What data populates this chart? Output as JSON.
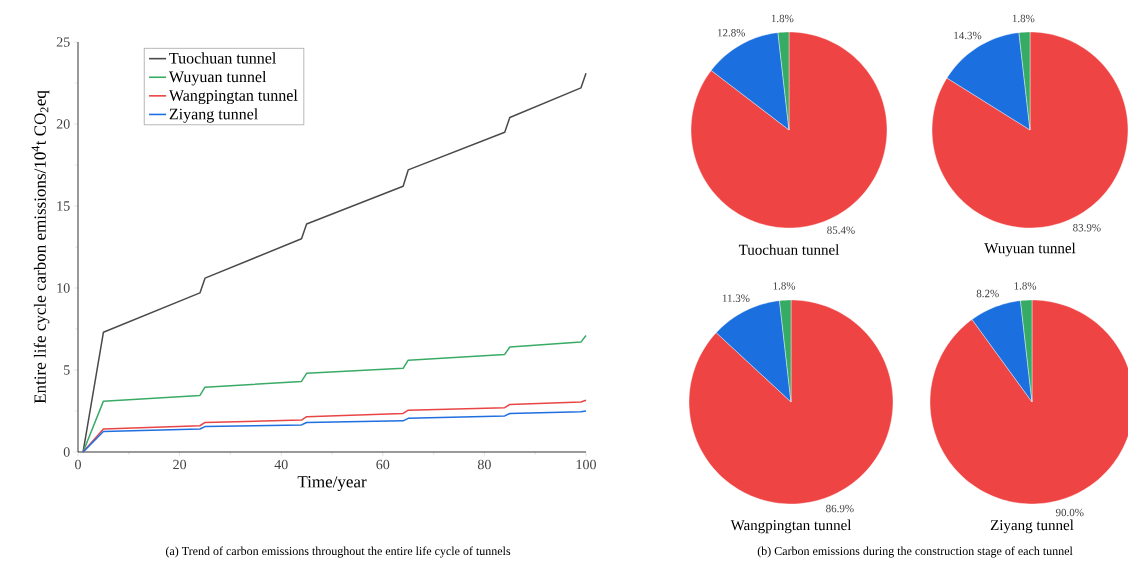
{
  "chart_data": [
    {
      "type": "line",
      "xlabel": "Time/year",
      "ylabel": "Entire life cycle carbon emissions/10$^{4}$t CO$_{2}$eq",
      "xlim": [
        0,
        100
      ],
      "ylim": [
        0,
        25
      ],
      "xticks": [
        0,
        20,
        40,
        60,
        80,
        100
      ],
      "yticks": [
        0,
        5,
        10,
        15,
        20,
        25
      ],
      "grid": false,
      "legend": "top left",
      "marker": "none",
      "line_style": "solid",
      "annotations": [
        "(a) Trend of carbon emissions throughout the entire life cycle of tunnels"
      ],
      "series": [
        {
          "name": "Tuochuan tunnel",
          "color": "#4a4a4a",
          "x": [
            1,
            5,
            24,
            25,
            44,
            45,
            64,
            65,
            84,
            85,
            99,
            100
          ],
          "values": [
            0,
            7.3,
            9.7,
            10.6,
            13.0,
            13.9,
            16.2,
            17.2,
            19.5,
            20.4,
            22.2,
            23.1
          ]
        },
        {
          "name": "Wuyuan tunnel",
          "color": "#3aaa66",
          "x": [
            1,
            5,
            24,
            25,
            44,
            45,
            64,
            65,
            84,
            85,
            99,
            100
          ],
          "values": [
            0,
            3.1,
            3.45,
            3.95,
            4.3,
            4.8,
            5.1,
            5.6,
            5.95,
            6.4,
            6.7,
            7.1
          ]
        },
        {
          "name": "Wangpingtan tunnel",
          "color": "#e84545",
          "x": [
            1,
            5,
            24,
            25,
            44,
            45,
            64,
            65,
            84,
            85,
            99,
            100
          ],
          "values": [
            0,
            1.4,
            1.6,
            1.8,
            1.95,
            2.15,
            2.35,
            2.55,
            2.7,
            2.9,
            3.05,
            3.15
          ]
        },
        {
          "name": "Ziyang tunnel",
          "color": "#1f6fe0",
          "x": [
            1,
            5,
            24,
            25,
            44,
            45,
            64,
            65,
            84,
            85,
            99,
            100
          ],
          "values": [
            0,
            1.25,
            1.4,
            1.55,
            1.65,
            1.8,
            1.9,
            2.05,
            2.2,
            2.35,
            2.45,
            2.5
          ]
        }
      ]
    },
    {
      "type": "pie",
      "title": "Tuochuan tunnel",
      "categories": [
        null,
        null,
        null
      ],
      "values": [
        85.4,
        12.8,
        1.8
      ],
      "value_labels": [
        "85.4%",
        "12.8%",
        "1.8%"
      ],
      "colors": [
        "#ef4444",
        "#1b6fdf",
        "#35ab63"
      ],
      "annotations": [
        "(b) Carbon emissions during the construction stage of each tunnel"
      ]
    },
    {
      "type": "pie",
      "title": "Wuyuan tunnel",
      "categories": [
        null,
        null,
        null
      ],
      "values": [
        83.9,
        14.3,
        1.8
      ],
      "value_labels": [
        "83.9%",
        "14.3%",
        "1.8%"
      ],
      "colors": [
        "#ef4444",
        "#1b6fdf",
        "#35ab63"
      ]
    },
    {
      "type": "pie",
      "title": "Wangpingtan tunnel",
      "categories": [
        null,
        null,
        null
      ],
      "values": [
        86.9,
        11.3,
        1.8
      ],
      "value_labels": [
        "86.9%",
        "11.3%",
        "1.8%"
      ],
      "colors": [
        "#ef4444",
        "#1b6fdf",
        "#35ab63"
      ]
    },
    {
      "type": "pie",
      "title": "Ziyang tunnel",
      "categories": [
        null,
        null,
        null
      ],
      "values": [
        90.0,
        8.2,
        1.8
      ],
      "value_labels": [
        "90.0%",
        "8.2%",
        "1.8%"
      ],
      "colors": [
        "#ef4444",
        "#1b6fdf",
        "#35ab63"
      ]
    }
  ]
}
